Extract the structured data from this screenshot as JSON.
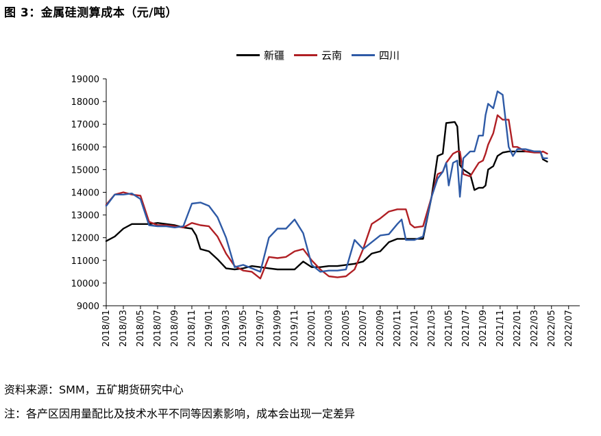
{
  "figure": {
    "title": "图 3：金属硅测算成本（元/吨）",
    "source": "资料来源：SMM，五矿期货研究中心",
    "note": "注：各产区因用量配比及技术水平不同等因素影响，成本会出现一定差异"
  },
  "chart_data": {
    "type": "line",
    "title": "金属硅测算成本（元/吨）",
    "xlabel": "",
    "ylabel": "",
    "ylim": [
      9000,
      19000
    ],
    "yticks": [
      9000,
      10000,
      11000,
      12000,
      13000,
      14000,
      15000,
      16000,
      17000,
      18000,
      19000
    ],
    "x_range_months": [
      0,
      55.3
    ],
    "xtick_labels": [
      "2018/01",
      "2018/03",
      "2018/05",
      "2018/07",
      "2018/09",
      "2018/11",
      "2019/01",
      "2019/03",
      "2019/05",
      "2019/07",
      "2019/09",
      "2019/11",
      "2020/01",
      "2020/03",
      "2020/05",
      "2020/07",
      "2020/09",
      "2020/11",
      "2021/01",
      "2021/03",
      "2021/05",
      "2021/07",
      "2021/09",
      "2021/11",
      "2022/01",
      "2022/03",
      "2022/05",
      "2022/07"
    ],
    "legend_position": "top-center",
    "series": [
      {
        "name": "新疆",
        "color": "#000000",
        "points": [
          [
            0,
            11850
          ],
          [
            1,
            12050
          ],
          [
            2,
            12400
          ],
          [
            3,
            12600
          ],
          [
            4,
            12600
          ],
          [
            5,
            12600
          ],
          [
            6,
            12650
          ],
          [
            7,
            12600
          ],
          [
            8,
            12550
          ],
          [
            9,
            12450
          ],
          [
            10,
            12400
          ],
          [
            10.5,
            12100
          ],
          [
            11,
            11500
          ],
          [
            12,
            11400
          ],
          [
            13,
            11050
          ],
          [
            14,
            10650
          ],
          [
            15,
            10600
          ],
          [
            16,
            10650
          ],
          [
            17,
            10750
          ],
          [
            18,
            10700
          ],
          [
            19,
            10650
          ],
          [
            20,
            10600
          ],
          [
            21,
            10600
          ],
          [
            22,
            10600
          ],
          [
            23,
            10950
          ],
          [
            24,
            10700
          ],
          [
            25,
            10700
          ],
          [
            26,
            10750
          ],
          [
            27,
            10750
          ],
          [
            28,
            10800
          ],
          [
            29,
            10850
          ],
          [
            30,
            10950
          ],
          [
            31,
            11300
          ],
          [
            32,
            11400
          ],
          [
            33,
            11800
          ],
          [
            34,
            11950
          ],
          [
            35,
            11950
          ],
          [
            36,
            11950
          ],
          [
            37,
            11950
          ],
          [
            38,
            13800
          ],
          [
            38.7,
            15600
          ],
          [
            39.3,
            15700
          ],
          [
            39.7,
            17050
          ],
          [
            40.7,
            17100
          ],
          [
            41,
            16900
          ],
          [
            41.3,
            15200
          ],
          [
            41.7,
            15000
          ],
          [
            42.5,
            14800
          ],
          [
            43,
            14100
          ],
          [
            43.5,
            14200
          ],
          [
            44,
            14200
          ],
          [
            44.3,
            14300
          ],
          [
            44.6,
            15000
          ],
          [
            45.2,
            15150
          ],
          [
            45.7,
            15600
          ],
          [
            46.3,
            15750
          ],
          [
            47,
            15800
          ],
          [
            48,
            15800
          ],
          [
            49,
            15800
          ],
          [
            50,
            15800
          ],
          [
            50.7,
            15800
          ],
          [
            51,
            15450
          ],
          [
            51.5,
            15350
          ]
        ]
      },
      {
        "name": "云南",
        "color": "#b01f24",
        "points": [
          [
            0,
            13450
          ],
          [
            1,
            13900
          ],
          [
            2,
            14000
          ],
          [
            3,
            13900
          ],
          [
            4,
            13850
          ],
          [
            5,
            12700
          ],
          [
            6,
            12550
          ],
          [
            7,
            12550
          ],
          [
            8,
            12500
          ],
          [
            9,
            12450
          ],
          [
            10,
            12650
          ],
          [
            11,
            12550
          ],
          [
            12,
            12500
          ],
          [
            13,
            12050
          ],
          [
            14,
            11300
          ],
          [
            15,
            10750
          ],
          [
            16,
            10550
          ],
          [
            17,
            10500
          ],
          [
            18,
            10200
          ],
          [
            19,
            11150
          ],
          [
            20,
            11100
          ],
          [
            21,
            11150
          ],
          [
            22,
            11400
          ],
          [
            23,
            11500
          ],
          [
            24,
            11000
          ],
          [
            25,
            10600
          ],
          [
            26,
            10300
          ],
          [
            27,
            10250
          ],
          [
            28,
            10300
          ],
          [
            29,
            10600
          ],
          [
            30,
            11500
          ],
          [
            31,
            12600
          ],
          [
            32,
            12850
          ],
          [
            33,
            13150
          ],
          [
            34,
            13250
          ],
          [
            35,
            13250
          ],
          [
            35.5,
            12600
          ],
          [
            36,
            12450
          ],
          [
            37,
            12500
          ],
          [
            38,
            13800
          ],
          [
            38.7,
            14800
          ],
          [
            39.3,
            14900
          ],
          [
            39.7,
            15300
          ],
          [
            40.5,
            15700
          ],
          [
            41,
            15800
          ],
          [
            41.3,
            15800
          ],
          [
            41.7,
            14800
          ],
          [
            42.5,
            14700
          ],
          [
            43,
            15000
          ],
          [
            43.5,
            15300
          ],
          [
            44,
            15400
          ],
          [
            44.3,
            15700
          ],
          [
            44.6,
            16100
          ],
          [
            45.2,
            16600
          ],
          [
            45.7,
            17400
          ],
          [
            46.3,
            17200
          ],
          [
            47,
            17200
          ],
          [
            47.5,
            16000
          ],
          [
            48,
            16000
          ],
          [
            49,
            15800
          ],
          [
            50,
            15750
          ],
          [
            50.7,
            15750
          ],
          [
            51,
            15800
          ],
          [
            51.5,
            15700
          ]
        ]
      },
      {
        "name": "四川",
        "color": "#2e5aa6",
        "points": [
          [
            0,
            13400
          ],
          [
            1,
            13900
          ],
          [
            2,
            13900
          ],
          [
            3,
            13950
          ],
          [
            4,
            13700
          ],
          [
            5,
            12550
          ],
          [
            6,
            12500
          ],
          [
            7,
            12500
          ],
          [
            8,
            12450
          ],
          [
            9,
            12500
          ],
          [
            10,
            13500
          ],
          [
            11,
            13550
          ],
          [
            12,
            13400
          ],
          [
            13,
            12900
          ],
          [
            14,
            12000
          ],
          [
            15,
            10700
          ],
          [
            16,
            10800
          ],
          [
            17,
            10650
          ],
          [
            18,
            10500
          ],
          [
            19,
            12000
          ],
          [
            20,
            12400
          ],
          [
            21,
            12400
          ],
          [
            22,
            12800
          ],
          [
            23,
            12200
          ],
          [
            24,
            10800
          ],
          [
            25,
            10500
          ],
          [
            26,
            10550
          ],
          [
            27,
            10550
          ],
          [
            28,
            10600
          ],
          [
            29,
            11900
          ],
          [
            30,
            11500
          ],
          [
            31,
            11800
          ],
          [
            32,
            12100
          ],
          [
            33,
            12150
          ],
          [
            34,
            12600
          ],
          [
            34.5,
            12800
          ],
          [
            35,
            11900
          ],
          [
            36,
            11900
          ],
          [
            37,
            12050
          ],
          [
            38,
            13800
          ],
          [
            38.7,
            14600
          ],
          [
            39.3,
            14900
          ],
          [
            39.7,
            15300
          ],
          [
            40,
            14300
          ],
          [
            40.5,
            15300
          ],
          [
            41,
            15400
          ],
          [
            41.3,
            13800
          ],
          [
            41.7,
            15500
          ],
          [
            42.5,
            15800
          ],
          [
            43,
            15800
          ],
          [
            43.5,
            16500
          ],
          [
            44,
            16500
          ],
          [
            44.3,
            17400
          ],
          [
            44.6,
            17900
          ],
          [
            45.2,
            17700
          ],
          [
            45.7,
            18450
          ],
          [
            46.3,
            18300
          ],
          [
            47,
            16000
          ],
          [
            47.5,
            15600
          ],
          [
            48,
            15900
          ],
          [
            49,
            15900
          ],
          [
            50,
            15800
          ],
          [
            50.7,
            15800
          ],
          [
            51,
            15500
          ],
          [
            51.5,
            15500
          ]
        ]
      }
    ]
  }
}
